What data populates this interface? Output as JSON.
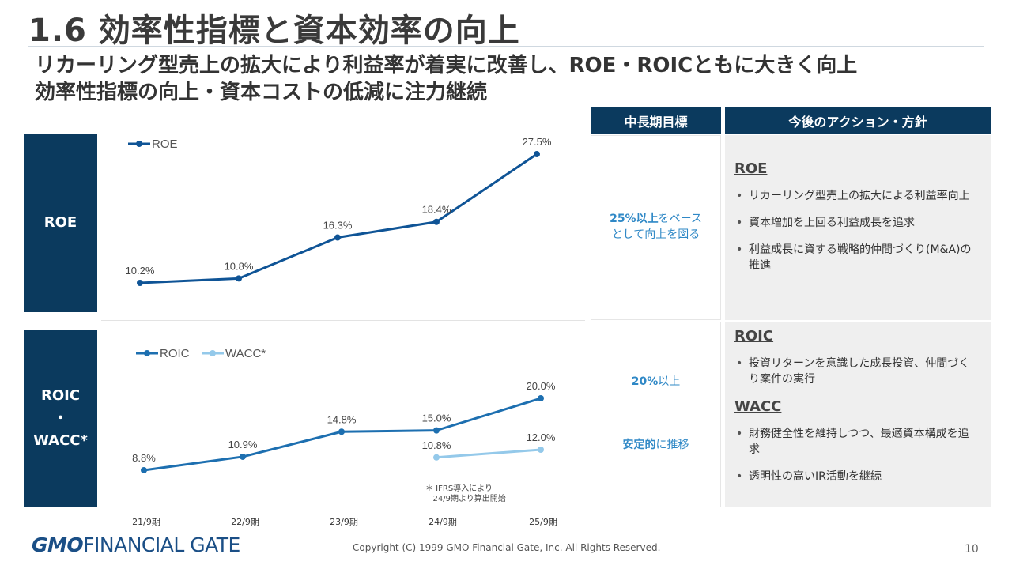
{
  "header": {
    "title": "1.6  効率性指標と資本効率の向上",
    "subtitle_line1": "リカーリング型売上の拡大により利益率が着実に改善し、ROE・ROICともに大きく向上",
    "subtitle_line2": "効率性指標の向上・資本コストの低減に注力継続"
  },
  "side_labels": {
    "roe": "ROE",
    "roic_line1": "ROIC",
    "roic_line2": "・",
    "roic_line3": "WACC*"
  },
  "table": {
    "col_target": "中長期目標",
    "col_action": "今後のアクション・方針",
    "roe_target_bold": "25%以上",
    "roe_target_rest": "をベース",
    "roe_target_line2": "として向上を図る",
    "roic_target_bold": "20%",
    "roic_target_rest": "以上",
    "wacc_target_bold": "安定的",
    "wacc_target_rest": "に推移",
    "roe_heading": "ROE",
    "roe_items": [
      "リカーリング型売上の拡大による利益率向上",
      "資本増加を上回る利益成長を追求",
      "利益成長に資する戦略的仲間づくり(M&A)の推進"
    ],
    "roic_heading": "ROIC",
    "roic_items": [
      "投資リターンを意識した成長投資、仲間づくり案件の実行"
    ],
    "wacc_heading": "WACC",
    "wacc_items": [
      "財務健全性を維持しつつ、最適資本構成を追求",
      "透明性の高いIR活動を継続"
    ]
  },
  "chart_data": [
    {
      "type": "line",
      "categories": [
        "21/9期",
        "22/9期",
        "23/9期",
        "24/9期",
        "25/9期"
      ],
      "series": [
        {
          "name": "ROE",
          "values": [
            10.2,
            10.8,
            16.3,
            18.4,
            27.5
          ],
          "labels": [
            "10.2%",
            "10.8%",
            "16.3%",
            "18.4%",
            "27.5%"
          ],
          "color": "#0f5496"
        }
      ],
      "legend": "top-left"
    },
    {
      "type": "line",
      "categories": [
        "21/9期",
        "22/9期",
        "23/9期",
        "24/9期",
        "25/9期"
      ],
      "series": [
        {
          "name": "ROIC",
          "values": [
            8.8,
            10.9,
            14.8,
            15.0,
            20.0
          ],
          "labels": [
            "8.8%",
            "10.9%",
            "14.8%",
            "15.0%",
            "20.0%"
          ],
          "color": "#1d6fb0"
        },
        {
          "name": "WACC*",
          "values": [
            null,
            null,
            null,
            10.8,
            12.0
          ],
          "labels": [
            null,
            null,
            null,
            "10.8%",
            "12.0%"
          ],
          "color": "#94c9ea"
        }
      ],
      "legend": "top-left",
      "note": "＊ IFRS導入により\n   24/9期より算出開始"
    }
  ],
  "footer": {
    "logo_gmo": "GMO",
    "logo_rest": "FINANCIAL GATE",
    "copyright": "Copyright (C) 1999 GMO Financial Gate, Inc. All Rights Reserved.",
    "page": "10"
  }
}
